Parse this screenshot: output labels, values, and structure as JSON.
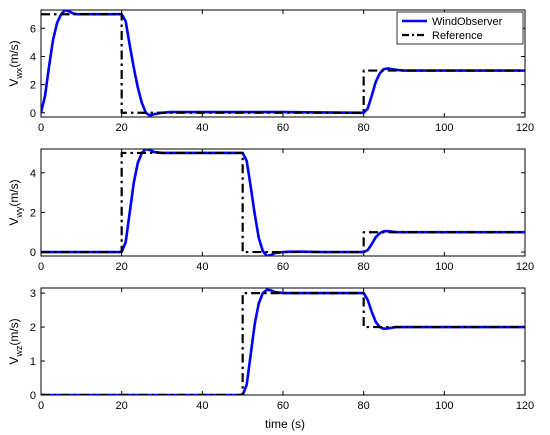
{
  "colors": {
    "observer": "#0000ff",
    "reference": "#000000"
  },
  "legend": {
    "observer_label": "WindObserver",
    "reference_label": "Reference",
    "placement": "top-right"
  },
  "xlabel": "time (s)",
  "chart_data": [
    {
      "type": "line",
      "ylabel_main": "V",
      "ylabel_sub": "wx",
      "ylabel_unit": "(m/s)",
      "xlim": [
        0,
        120
      ],
      "ylim": [
        -0.3,
        7.3
      ],
      "xticks": [
        0,
        20,
        40,
        60,
        80,
        100,
        120
      ],
      "yticks": [
        0,
        2,
        4,
        6
      ],
      "grid": false,
      "series": [
        {
          "name": "Reference",
          "x": [
            0,
            20,
            20,
            80,
            80,
            120
          ],
          "y": [
            7,
            7,
            0,
            0,
            3,
            3
          ]
        },
        {
          "name": "WindObserver",
          "x": [
            0,
            1,
            2,
            3,
            4,
            5,
            6,
            7,
            8,
            9,
            10,
            12,
            15,
            18,
            20,
            21,
            22,
            23,
            24,
            25,
            26,
            27,
            28,
            30,
            32,
            35,
            40,
            60,
            80,
            81,
            82,
            83,
            84,
            85,
            86,
            87,
            88,
            90,
            92,
            95,
            100,
            120
          ],
          "y": [
            0,
            1.2,
            3.3,
            5.2,
            6.4,
            7.0,
            7.3,
            7.2,
            7.05,
            7.0,
            7.0,
            7.0,
            7.0,
            7.0,
            7.0,
            6.5,
            4.8,
            3.2,
            1.8,
            0.7,
            0.0,
            -0.2,
            -0.1,
            0.0,
            0.05,
            0.05,
            0.05,
            0.05,
            0.0,
            0.3,
            1.2,
            2.2,
            2.8,
            3.1,
            3.15,
            3.1,
            3.05,
            3.0,
            3.0,
            3.0,
            3.0,
            3.0
          ]
        }
      ]
    },
    {
      "type": "line",
      "ylabel_main": "V",
      "ylabel_sub": "wy",
      "ylabel_unit": "(m/s)",
      "xlim": [
        0,
        120
      ],
      "ylim": [
        -0.2,
        5.2
      ],
      "xticks": [
        0,
        20,
        40,
        60,
        80,
        100,
        120
      ],
      "yticks": [
        0,
        2,
        4
      ],
      "grid": false,
      "series": [
        {
          "name": "Reference",
          "x": [
            0,
            20,
            20,
            50,
            50,
            80,
            80,
            120
          ],
          "y": [
            0,
            0,
            5,
            5,
            0,
            0,
            1,
            1
          ]
        },
        {
          "name": "WindObserver",
          "x": [
            0,
            20,
            21,
            22,
            23,
            24,
            25,
            26,
            27,
            28,
            30,
            32,
            35,
            40,
            50,
            51,
            52,
            53,
            54,
            55,
            56,
            57,
            58,
            60,
            62,
            65,
            70,
            80,
            81,
            82,
            83,
            84,
            85,
            86,
            87,
            88,
            90,
            95,
            100,
            120
          ],
          "y": [
            0,
            0,
            0.5,
            2.0,
            3.5,
            4.5,
            5.0,
            5.2,
            5.15,
            5.05,
            5.0,
            5.0,
            5.0,
            5.0,
            5.0,
            4.6,
            3.3,
            1.9,
            0.7,
            0.05,
            -0.2,
            -0.15,
            -0.05,
            0.0,
            0.02,
            0.02,
            0.0,
            0.0,
            0.1,
            0.4,
            0.75,
            0.95,
            1.05,
            1.05,
            1.03,
            1.01,
            1.0,
            1.0,
            1.0,
            1.0
          ]
        }
      ]
    },
    {
      "type": "line",
      "ylabel_main": "V",
      "ylabel_sub": "wz",
      "ylabel_unit": "(m/s)",
      "xlim": [
        0,
        120
      ],
      "ylim": [
        0,
        3.15
      ],
      "xticks": [
        0,
        20,
        40,
        60,
        80,
        100,
        120
      ],
      "yticks": [
        0,
        1,
        2,
        3
      ],
      "grid": false,
      "series": [
        {
          "name": "Reference",
          "x": [
            0,
            50,
            50,
            80,
            80,
            120
          ],
          "y": [
            0,
            0,
            3,
            3,
            2,
            2
          ]
        },
        {
          "name": "WindObserver",
          "x": [
            0,
            50,
            51,
            52,
            53,
            54,
            55,
            56,
            57,
            58,
            60,
            62,
            65,
            70,
            80,
            81,
            82,
            83,
            84,
            85,
            86,
            87,
            88,
            90,
            95,
            100,
            120
          ],
          "y": [
            0,
            0,
            0.3,
            1.2,
            2.1,
            2.7,
            3.0,
            3.1,
            3.08,
            3.03,
            3.0,
            3.0,
            3.0,
            3.0,
            3.0,
            2.8,
            2.45,
            2.15,
            2.0,
            1.95,
            1.96,
            1.98,
            2.0,
            2.0,
            2.0,
            2.0,
            2.0
          ]
        }
      ]
    }
  ]
}
